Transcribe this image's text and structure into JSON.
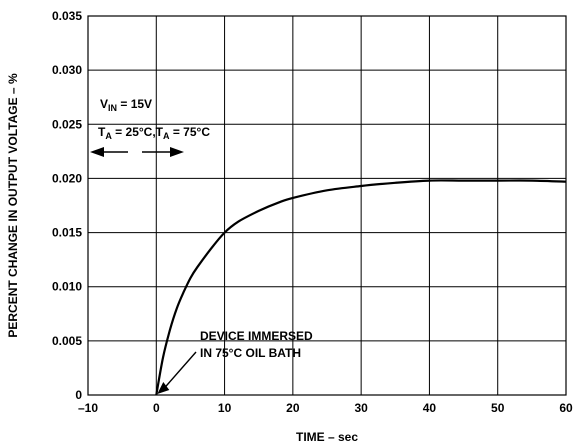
{
  "chart_data": {
    "type": "line",
    "title": "",
    "xlabel": "TIME – sec",
    "ylabel": "PERCENT CHANGE IN OUTPUT VOLTAGE – %",
    "xlim": [
      -10,
      60
    ],
    "ylim": [
      0,
      0.035
    ],
    "x_ticks": [
      "–10",
      "0",
      "10",
      "20",
      "30",
      "40",
      "50",
      "60"
    ],
    "y_ticks": [
      "0",
      "0.005",
      "0.010",
      "0.015",
      "0.020",
      "0.025",
      "0.030",
      "0.035"
    ],
    "grid": true,
    "series": [
      {
        "x": [
          0,
          1,
          2,
          3,
          4,
          5,
          6,
          8,
          10,
          12,
          15,
          18,
          20,
          25,
          30,
          35,
          40,
          45,
          50,
          55,
          60
        ],
        "y": [
          0,
          0.0035,
          0.006,
          0.008,
          0.0095,
          0.0108,
          0.0118,
          0.0135,
          0.015,
          0.016,
          0.017,
          0.0178,
          0.0182,
          0.0189,
          0.0193,
          0.0196,
          0.0198,
          0.0198,
          0.0198,
          0.0198,
          0.0197
        ]
      }
    ],
    "annotations": {
      "vin": {
        "main": "V",
        "sub": "IN",
        "rest": " = 15V"
      },
      "ta": {
        "t1": "T",
        "s1": "A",
        "r1": " = 25°C,T",
        "s2": "A",
        "r2": " = 75°C"
      },
      "immersed_line1": "DEVICE IMMERSED",
      "immersed_line2": "IN 75°C OIL BATH"
    }
  }
}
